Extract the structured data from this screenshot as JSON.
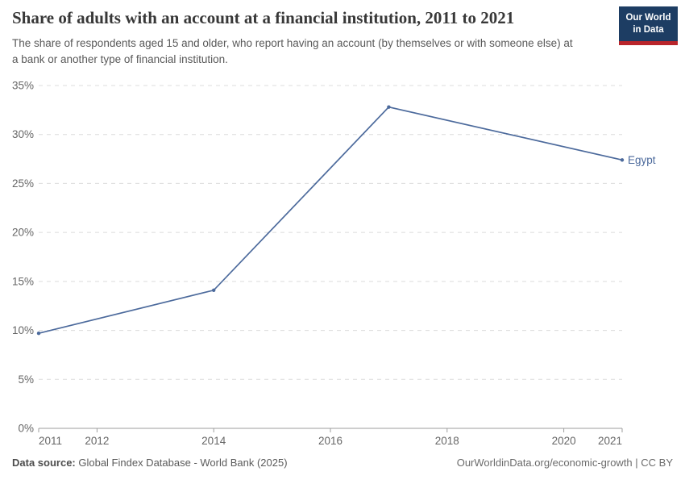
{
  "header": {
    "title": "Share of adults with an account at a financial institution, 2011 to 2021",
    "subtitle": "The share of respondents aged 15 and older, who report having an account (by themselves or with someone else) at a bank or another type of financial institution."
  },
  "logo": {
    "line1": "Our World",
    "line2": "in Data"
  },
  "chart_data": {
    "type": "line",
    "title": "Share of adults with an account at a financial institution, 2011 to 2021",
    "series": [
      {
        "name": "Egypt",
        "color": "#4c6a9c",
        "points": [
          {
            "x": 2011,
            "y": 9.7
          },
          {
            "x": 2014,
            "y": 14.1
          },
          {
            "x": 2017,
            "y": 32.8
          },
          {
            "x": 2021,
            "y": 27.4
          }
        ]
      }
    ],
    "xlim": [
      2011,
      2021
    ],
    "ylim": [
      0,
      35
    ],
    "x_ticks": [
      2011,
      2012,
      2014,
      2016,
      2018,
      2020,
      2021
    ],
    "y_ticks": [
      0,
      5,
      10,
      15,
      20,
      25,
      30,
      35
    ],
    "y_tick_format": "{v}%",
    "grid": true,
    "legend_position": "end-of-line"
  },
  "footer": {
    "source_label": "Data source:",
    "source_text": " Global Findex Database - World Bank (2025)",
    "credit": "OurWorldinData.org/economic-growth | CC BY"
  },
  "colors": {
    "line": "#4c6a9c",
    "grid": "#dcdcdc",
    "axis": "#9e9e9e",
    "tick_text": "#666666",
    "title_text": "#383838",
    "subtitle_text": "#595959",
    "logo_bg": "#1d3d63",
    "logo_accent": "#b9252b"
  }
}
